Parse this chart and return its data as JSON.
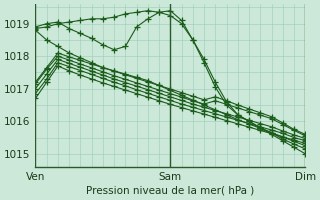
{
  "xlabel": "Pression niveau de la mer( hPa )",
  "bg_color": "#cce8d8",
  "grid_color": "#99ccb8",
  "line_color": "#1a5c1a",
  "ylim": [
    1014.6,
    1019.6
  ],
  "yticks": [
    1015,
    1016,
    1017,
    1018,
    1019
  ],
  "xtick_labels": [
    "Ven",
    "Sam",
    "Dim"
  ],
  "xtick_positions": [
    0,
    48,
    96
  ],
  "vline_positions": [
    0,
    48,
    96
  ],
  "series": [
    {
      "x": [
        0,
        4,
        8,
        12,
        16,
        20,
        24,
        28,
        32,
        36,
        40,
        44,
        48,
        52,
        56,
        60,
        64,
        68,
        72,
        76,
        80,
        84,
        88,
        92,
        96
      ],
      "y": [
        1018.85,
        1018.9,
        1019.0,
        1019.05,
        1019.1,
        1019.15,
        1019.15,
        1019.2,
        1019.3,
        1019.35,
        1019.4,
        1019.35,
        1019.25,
        1019.0,
        1018.5,
        1017.9,
        1017.2,
        1016.6,
        1016.2,
        1016.0,
        1015.8,
        1015.6,
        1015.4,
        1015.2,
        1015.0
      ]
    },
    {
      "x": [
        0,
        4,
        8,
        12,
        16,
        20,
        24,
        28,
        32,
        36,
        40,
        44,
        48,
        52,
        56,
        60,
        64,
        68,
        72,
        76,
        80,
        84,
        88,
        92,
        96
      ],
      "y": [
        1018.9,
        1019.0,
        1019.05,
        1018.85,
        1018.7,
        1018.55,
        1018.35,
        1018.2,
        1018.3,
        1018.9,
        1019.15,
        1019.35,
        1019.4,
        1019.1,
        1018.5,
        1017.8,
        1017.05,
        1016.5,
        1016.2,
        1016.0,
        1015.8,
        1015.65,
        1015.45,
        1015.3,
        1015.15
      ]
    },
    {
      "x": [
        0,
        4,
        8,
        12,
        16,
        20,
        24,
        28,
        32,
        36,
        40,
        44,
        48,
        52,
        56,
        60,
        64,
        68,
        72,
        76,
        80,
        84,
        88,
        92,
        96
      ],
      "y": [
        1018.8,
        1018.5,
        1018.3,
        1018.1,
        1017.95,
        1017.8,
        1017.65,
        1017.55,
        1017.45,
        1017.35,
        1017.25,
        1017.1,
        1016.95,
        1016.8,
        1016.65,
        1016.5,
        1016.35,
        1016.2,
        1016.05,
        1015.92,
        1015.78,
        1015.65,
        1015.52,
        1015.38,
        1015.25
      ]
    },
    {
      "x": [
        0,
        4,
        8,
        12,
        16,
        20,
        24,
        28,
        32,
        36,
        40,
        44,
        48,
        52,
        56,
        60,
        64,
        68,
        72,
        76,
        80,
        84,
        88,
        92,
        96
      ],
      "y": [
        1016.7,
        1017.2,
        1017.7,
        1017.55,
        1017.42,
        1017.3,
        1017.18,
        1017.07,
        1016.96,
        1016.85,
        1016.74,
        1016.63,
        1016.52,
        1016.42,
        1016.32,
        1016.22,
        1016.12,
        1016.02,
        1015.92,
        1015.82,
        1015.72,
        1015.62,
        1015.52,
        1015.42,
        1015.32
      ]
    },
    {
      "x": [
        0,
        4,
        8,
        12,
        16,
        20,
        24,
        28,
        32,
        36,
        40,
        44,
        48,
        52,
        56,
        60,
        64,
        68,
        72,
        76,
        80,
        84,
        88,
        92,
        96
      ],
      "y": [
        1016.85,
        1017.3,
        1017.8,
        1017.68,
        1017.56,
        1017.44,
        1017.32,
        1017.2,
        1017.09,
        1016.97,
        1016.86,
        1016.75,
        1016.64,
        1016.53,
        1016.43,
        1016.33,
        1016.23,
        1016.13,
        1016.03,
        1015.93,
        1015.83,
        1015.73,
        1015.63,
        1015.5,
        1015.4
      ]
    },
    {
      "x": [
        0,
        4,
        8,
        12,
        16,
        20,
        24,
        28,
        32,
        36,
        40,
        44,
        48,
        52,
        56,
        60,
        64,
        68,
        72,
        76,
        80,
        84,
        88,
        92,
        96
      ],
      "y": [
        1017.0,
        1017.45,
        1017.9,
        1017.78,
        1017.66,
        1017.54,
        1017.42,
        1017.3,
        1017.19,
        1017.08,
        1016.97,
        1016.86,
        1016.75,
        1016.64,
        1016.53,
        1016.43,
        1016.33,
        1016.23,
        1016.13,
        1016.03,
        1015.93,
        1015.83,
        1015.7,
        1015.58,
        1015.47
      ]
    },
    {
      "x": [
        0,
        4,
        8,
        12,
        16,
        20,
        24,
        28,
        32,
        36,
        40,
        44,
        48,
        52,
        56,
        60,
        64,
        68,
        72,
        76,
        80,
        84,
        88,
        92,
        96
      ],
      "y": [
        1017.15,
        1017.6,
        1018.0,
        1017.88,
        1017.76,
        1017.64,
        1017.52,
        1017.4,
        1017.29,
        1017.18,
        1017.07,
        1016.96,
        1016.85,
        1016.74,
        1016.63,
        1016.53,
        1016.63,
        1016.52,
        1016.41,
        1016.3,
        1016.19,
        1016.08,
        1015.9,
        1015.72,
        1015.55
      ]
    },
    {
      "x": [
        0,
        4,
        8,
        12,
        16,
        20,
        24,
        28,
        32,
        36,
        40,
        44,
        48,
        52,
        56,
        60,
        64,
        68,
        72,
        76,
        80,
        84,
        88,
        92,
        96
      ],
      "y": [
        1017.2,
        1017.65,
        1018.1,
        1017.98,
        1017.87,
        1017.76,
        1017.65,
        1017.54,
        1017.43,
        1017.32,
        1017.21,
        1017.1,
        1016.99,
        1016.88,
        1016.77,
        1016.66,
        1016.75,
        1016.63,
        1016.5,
        1016.38,
        1016.26,
        1016.14,
        1015.95,
        1015.75,
        1015.6
      ]
    }
  ]
}
